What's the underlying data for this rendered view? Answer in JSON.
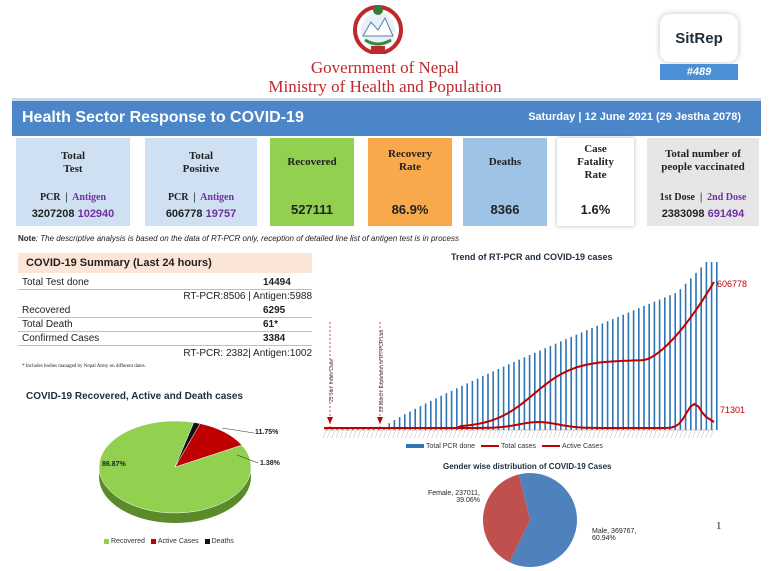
{
  "header": {
    "gov_line1": "Government of Nepal",
    "gov_line2": "Ministry of Health and Population",
    "sitrep_label": "SitRep",
    "sitrep_number": "#489",
    "banner_title": "Health Sector Response to COVID-19",
    "banner_date": "Saturday | 12 June 2021 (29 Jestha 2078)"
  },
  "cards": {
    "total_test": {
      "label": "Total Test",
      "sub_a": "PCR",
      "sub_b": "Antigen",
      "val_a": "3207208",
      "val_b": "102940"
    },
    "total_positive": {
      "label": "Total Positive",
      "sub_a": "PCR",
      "sub_b": "Antigen",
      "val_a": "606778",
      "val_b": "19757"
    },
    "recovered": {
      "label": "Recovered",
      "value": "527111"
    },
    "recovery_rate": {
      "label": "Recovery Rate",
      "value": "86.9%"
    },
    "deaths": {
      "label": "Deaths",
      "value": "8366"
    },
    "cfr": {
      "label": "Case Fatality Rate",
      "value": "1.6%"
    },
    "vaccinated": {
      "label": "Total number of people vaccinated",
      "sub_a": "1st Dose",
      "sub_b": "2nd Dose",
      "val_a": "2383098",
      "val_b": "691494"
    }
  },
  "note": {
    "prefix": "Note",
    "text": ": The descriptive analysis is based on the data of RT-PCR only, reception of detailed line list of antigen test is in process"
  },
  "summary": {
    "title": "COVID-19 Summary (Last 24 hours)",
    "rows": [
      {
        "key": "Total Test done",
        "value": "14494"
      },
      {
        "key": "Recovered",
        "value": "6295"
      },
      {
        "key": "Total Death",
        "value": "61*"
      },
      {
        "key": "Confirmed Cases",
        "value": "3384"
      }
    ],
    "test_split": "RT-PCR:8506 | Antigen:5988",
    "confirmed_split": "RT-PCR: 2382| Antigen:1002",
    "footnote": "* Includes bodies managed by Nepal Army on different dates."
  },
  "pie_outcomes": {
    "title": "COVID-19 Recovered, Active and Death cases",
    "legend": [
      "Recovered",
      "Active Cases",
      "Deaths"
    ],
    "colors": [
      "#92d050",
      "#c00000",
      "#111111"
    ]
  },
  "trend": {
    "title": "Trend of RT-PCR and COVID-19 cases",
    "legend": [
      "Total PCR done",
      "Total  cases",
      "Active Cases"
    ],
    "annotation_1": "23 Jan: Index Case",
    "annotation_2": "29 March: Expansion of RT-PCR Lab",
    "end_label_total": "606778",
    "end_label_active": "71301",
    "colors": {
      "pcr": "#2e75b6",
      "cases": "#c00000"
    }
  },
  "gender": {
    "title": "Gender wise distribution of COVID-19 Cases",
    "female_label": "Female, 237011,",
    "female_pct": "39.06%",
    "male_label": "Male, 369767,",
    "male_pct": "60.94%",
    "colors": {
      "female": "#c0504d",
      "male": "#4f81bd"
    }
  },
  "page_number": "1",
  "chart_data": [
    {
      "type": "pie",
      "title": "COVID-19 Recovered, Active and Death cases",
      "labels": [
        "Recovered",
        "Active Cases",
        "Deaths"
      ],
      "values": [
        86.87,
        11.75,
        1.38
      ],
      "value_labels": [
        "86.87%",
        "11.75%",
        "1.38%"
      ]
    },
    {
      "type": "line",
      "title": "Trend of RT-PCR and COVID-19 cases",
      "series": [
        {
          "name": "Total  cases",
          "end_value": 606778
        },
        {
          "name": "Active Cases",
          "end_value": 71301
        },
        {
          "name": "Total PCR done"
        }
      ]
    },
    {
      "type": "pie",
      "title": "Gender wise distribution of COVID-19 Cases",
      "labels": [
        "Female",
        "Male"
      ],
      "values": [
        237011,
        369767
      ],
      "percent": [
        39.06,
        60.94
      ]
    }
  ]
}
